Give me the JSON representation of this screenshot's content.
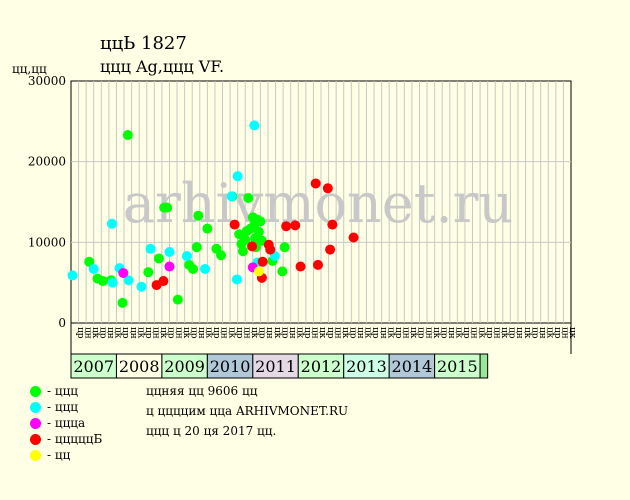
{
  "header": {
    "title": "ццЬ 1827",
    "subtitle": "ццц Ag,ццц VF."
  },
  "legend": [
    {
      "label": "- ццц",
      "color": "#00ff00"
    },
    {
      "label": "- ццц",
      "color": "#00ffff"
    },
    {
      "label": "- ццца",
      "color": "#ff00ff"
    },
    {
      "label": "- цццццБ",
      "color": "#ff0000"
    },
    {
      "label": "- цц",
      "color": "#ffff00"
    }
  ],
  "notes": {
    "line1": "ццняя цц 9606 цц",
    "line2": "ц ццццим цца ARHIVMONET.RU",
    "line3": "ццц ц 20 ця 2017 цц."
  },
  "watermark": "arhivmonet.ru",
  "chart_data": {
    "type": "scatter",
    "ylabel": "цц,цц",
    "ylim": [
      0,
      30000
    ],
    "yticks": [
      0,
      10000,
      20000,
      30000
    ],
    "month_labels": [
      "цр",
      "цн",
      "цк",
      "цр",
      "цн",
      "цк",
      "цр",
      "цн",
      "цк",
      "цр",
      "цн",
      "цк",
      "цр",
      "цн",
      "цк",
      "цр",
      "цн",
      "цк",
      "цр",
      "цн",
      "цк",
      "цр",
      "цн",
      "цк",
      "цр",
      "цн",
      "цк",
      "цр",
      "цн",
      "цк",
      "цр",
      "цн",
      "цк",
      "цр",
      "цн",
      "цк",
      "цр",
      "цн",
      "цк",
      "цр",
      "цн",
      "цк",
      "цр",
      "цн",
      "цк",
      "цр",
      "цн",
      "цк",
      "цр",
      "цн",
      "цк",
      "цр",
      "цн",
      "цк",
      "цр",
      "цн",
      "цк",
      "цр",
      "цн",
      "цк",
      "цр",
      "цн",
      "цк",
      "цр",
      "цн",
      "цк"
    ],
    "years": [
      {
        "label": "2007",
        "start": 0,
        "end": 6,
        "color": "#ccffcc"
      },
      {
        "label": "2008",
        "start": 6,
        "end": 12,
        "color": "#ffffe6"
      },
      {
        "label": "2009",
        "start": 12,
        "end": 18,
        "color": "#ccffcc"
      },
      {
        "label": "2010",
        "start": 18,
        "end": 24,
        "color": "#b0c8d8"
      },
      {
        "label": "2011",
        "start": 24,
        "end": 30,
        "color": "#e6d9e6"
      },
      {
        "label": "2012",
        "start": 30,
        "end": 36,
        "color": "#ccffcc"
      },
      {
        "label": "2013",
        "start": 36,
        "end": 42,
        "color": "#ccffe6"
      },
      {
        "label": "2014",
        "start": 42,
        "end": 48,
        "color": "#b0c8d8"
      },
      {
        "label": "2015",
        "start": 48,
        "end": 54,
        "color": "#ccffcc"
      },
      {
        "label": "",
        "start": 54,
        "end": 55,
        "color": "#99e699"
      }
    ],
    "series": [
      {
        "color": "#00ff00",
        "points": [
          [
            2.4,
            7600
          ],
          [
            3.5,
            5500
          ],
          [
            4.2,
            5200
          ],
          [
            5.3,
            5300
          ],
          [
            6.8,
            2500
          ],
          [
            7.5,
            23300
          ],
          [
            10.2,
            6300
          ],
          [
            11.6,
            8000
          ],
          [
            12.3,
            14300
          ],
          [
            12.7,
            14300
          ],
          [
            14.1,
            2900
          ],
          [
            15.6,
            7200
          ],
          [
            16.1,
            6700
          ],
          [
            16.6,
            9400
          ],
          [
            16.8,
            13300
          ],
          [
            18.0,
            11700
          ],
          [
            19.2,
            9200
          ],
          [
            19.8,
            8400
          ],
          [
            21.3,
            15700
          ],
          [
            22.2,
            11000
          ],
          [
            22.5,
            9800
          ],
          [
            22.7,
            8900
          ],
          [
            23.0,
            10300
          ],
          [
            23.2,
            11400
          ],
          [
            23.4,
            15500
          ],
          [
            23.7,
            11700
          ],
          [
            24.0,
            13100
          ],
          [
            24.2,
            12200
          ],
          [
            24.3,
            10500
          ],
          [
            24.4,
            9400
          ],
          [
            24.6,
            12800
          ],
          [
            24.8,
            11300
          ],
          [
            25.0,
            12600
          ],
          [
            25.2,
            10200
          ],
          [
            26.6,
            7700
          ],
          [
            27.9,
            6400
          ],
          [
            28.2,
            9400
          ]
        ]
      },
      {
        "color": "#00ffff",
        "points": [
          [
            0.2,
            5900
          ],
          [
            3.0,
            6700
          ],
          [
            5.5,
            5000
          ],
          [
            5.4,
            12300
          ],
          [
            6.4,
            6800
          ],
          [
            7.6,
            5300
          ],
          [
            9.3,
            4500
          ],
          [
            10.5,
            9200
          ],
          [
            13.0,
            8800
          ],
          [
            15.3,
            8300
          ],
          [
            17.7,
            6700
          ],
          [
            21.2,
            15700
          ],
          [
            22.0,
            18200
          ],
          [
            21.9,
            5400
          ],
          [
            24.2,
            24500
          ],
          [
            24.6,
            7500
          ],
          [
            26.9,
            8300
          ]
        ]
      },
      {
        "color": "#ff00ff",
        "points": [
          [
            6.9,
            6200
          ],
          [
            13.0,
            7000
          ],
          [
            24.0,
            6900
          ]
        ]
      },
      {
        "color": "#ff0000",
        "points": [
          [
            11.3,
            4700
          ],
          [
            12.2,
            5200
          ],
          [
            21.6,
            12200
          ],
          [
            23.9,
            9500
          ],
          [
            25.3,
            7600
          ],
          [
            25.2,
            5600
          ],
          [
            26.1,
            9700
          ],
          [
            26.3,
            9100
          ],
          [
            28.4,
            12000
          ],
          [
            29.6,
            12100
          ],
          [
            30.3,
            7000
          ],
          [
            32.3,
            17300
          ],
          [
            32.6,
            7200
          ],
          [
            33.9,
            16700
          ],
          [
            34.2,
            9100
          ],
          [
            34.5,
            12200
          ],
          [
            37.3,
            10600
          ]
        ]
      },
      {
        "color": "#ffff00",
        "points": [
          [
            24.8,
            6400
          ]
        ]
      }
    ]
  }
}
